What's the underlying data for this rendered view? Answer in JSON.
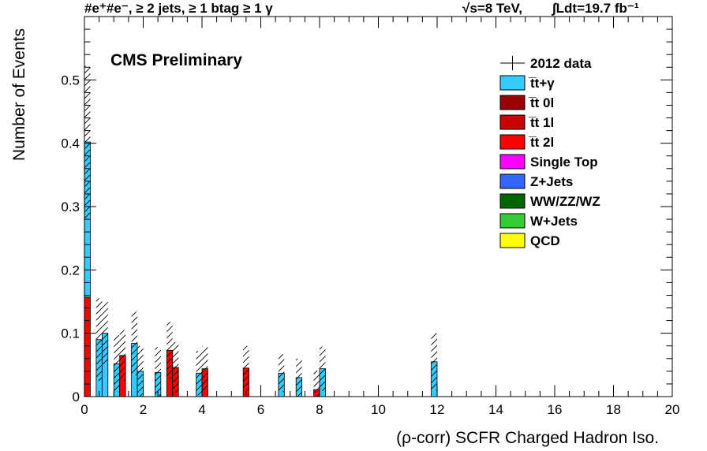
{
  "chart_data": {
    "type": "bar",
    "stacked": true,
    "header_left": "#e⁺#e⁻, ≥ 2 jets, ≥ 1 btag ≥ 1 γ",
    "header_right_energy": "√s=8 TeV,",
    "header_right_lumi": "∫Ldt=19.7 fb⁻¹",
    "label": "CMS Preliminary",
    "xlabel": "(ρ-corr) SCFR Charged Hadron Iso.",
    "ylabel": "Number of Events",
    "xlim": [
      0,
      20
    ],
    "ylim": [
      0,
      0.6
    ],
    "xticks": [
      0,
      2,
      4,
      6,
      8,
      10,
      12,
      14,
      16,
      18,
      20
    ],
    "xtick_labels": [
      "0",
      "2",
      "4",
      "6",
      "8",
      "10",
      "12",
      "14",
      "16",
      "18",
      "20"
    ],
    "yticks": [
      0,
      0.1,
      0.2,
      0.3,
      0.4,
      0.5
    ],
    "ytick_labels": [
      "0",
      "0.1",
      "0.2",
      "0.3",
      "0.4",
      "0.5"
    ],
    "bin_width": 0.2,
    "legend": [
      {
        "name": "2012 data",
        "marker": "cross",
        "color": "#000000"
      },
      {
        "name": "t̅t+γ",
        "color": "#33ccff"
      },
      {
        "name": "t̅t 0l",
        "color": "#990000"
      },
      {
        "name": "t̅t 1l",
        "color": "#cc0000"
      },
      {
        "name": "t̅t 2l",
        "color": "#ff0000"
      },
      {
        "name": "Single Top",
        "color": "#ff00ff"
      },
      {
        "name": "Z+Jets",
        "color": "#3366ff"
      },
      {
        "name": "WW/ZZ/WZ",
        "color": "#006600"
      },
      {
        "name": "W+Jets",
        "color": "#33cc33"
      },
      {
        "name": "QCD",
        "color": "#ffff00"
      }
    ],
    "bins": [
      {
        "x": 0.0,
        "ttgamma": 0.245,
        "tt2l": 0.157,
        "unc": 0.12
      },
      {
        "x": 0.4,
        "ttgamma": 0.09,
        "tt2l": 0,
        "unc": 0.065
      },
      {
        "x": 0.6,
        "ttgamma": 0.1,
        "tt2l": 0,
        "unc": 0.05
      },
      {
        "x": 1.0,
        "ttgamma": 0.052,
        "tt2l": 0,
        "unc": 0.045
      },
      {
        "x": 1.2,
        "ttgamma": 0,
        "tt2l": 0.065,
        "unc": 0.04
      },
      {
        "x": 1.6,
        "ttgamma": 0.084,
        "tt2l": 0,
        "unc": 0.05
      },
      {
        "x": 1.8,
        "ttgamma": 0.04,
        "tt2l": 0,
        "unc": 0.04
      },
      {
        "x": 2.4,
        "ttgamma": 0.038,
        "tt2l": 0,
        "unc": 0.04
      },
      {
        "x": 2.8,
        "ttgamma": 0,
        "tt2l": 0.073,
        "unc": 0.045
      },
      {
        "x": 3.0,
        "ttgamma": 0,
        "tt2l": 0.046,
        "unc": 0.04
      },
      {
        "x": 3.8,
        "ttgamma": 0.037,
        "tt2l": 0,
        "unc": 0.035
      },
      {
        "x": 4.0,
        "ttgamma": 0,
        "tt2l": 0.044,
        "unc": 0.035
      },
      {
        "x": 5.4,
        "ttgamma": 0,
        "tt2l": 0.045,
        "unc": 0.035
      },
      {
        "x": 6.6,
        "ttgamma": 0.037,
        "tt2l": 0,
        "unc": 0.03
      },
      {
        "x": 7.2,
        "ttgamma": 0.03,
        "tt2l": 0,
        "unc": 0.03
      },
      {
        "x": 7.8,
        "ttgamma": 0,
        "tt2l": 0.011,
        "unc": 0.03
      },
      {
        "x": 8.0,
        "ttgamma": 0.044,
        "tt2l": 0,
        "unc": 0.035
      },
      {
        "x": 11.8,
        "ttgamma": 0.055,
        "tt2l": 0,
        "unc": 0.045
      }
    ]
  }
}
